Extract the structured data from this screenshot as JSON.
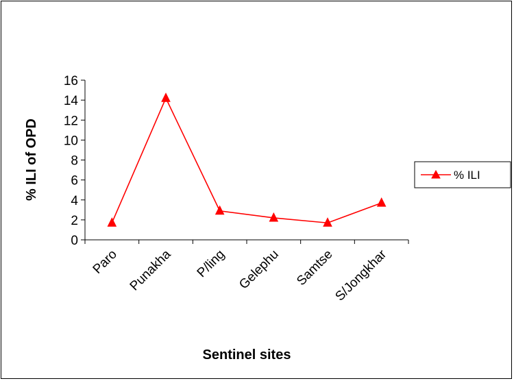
{
  "chart_data": {
    "type": "line",
    "title": "",
    "xlabel": "Sentinel sites",
    "ylabel": "% ILI of OPD",
    "categories": [
      "Paro",
      "Punakha",
      "P/ling",
      "Gelephu",
      "Samtse",
      "S/Jongkhar"
    ],
    "ylim": [
      0,
      16
    ],
    "yticks": [
      0,
      2,
      4,
      6,
      8,
      10,
      12,
      14,
      16
    ],
    "grid": false,
    "legend": "right",
    "series": [
      {
        "name": "% ILI",
        "values": [
          1.7,
          14.2,
          2.9,
          2.2,
          1.7,
          3.7
        ],
        "color": "#ff0000",
        "marker": "triangle"
      }
    ]
  }
}
